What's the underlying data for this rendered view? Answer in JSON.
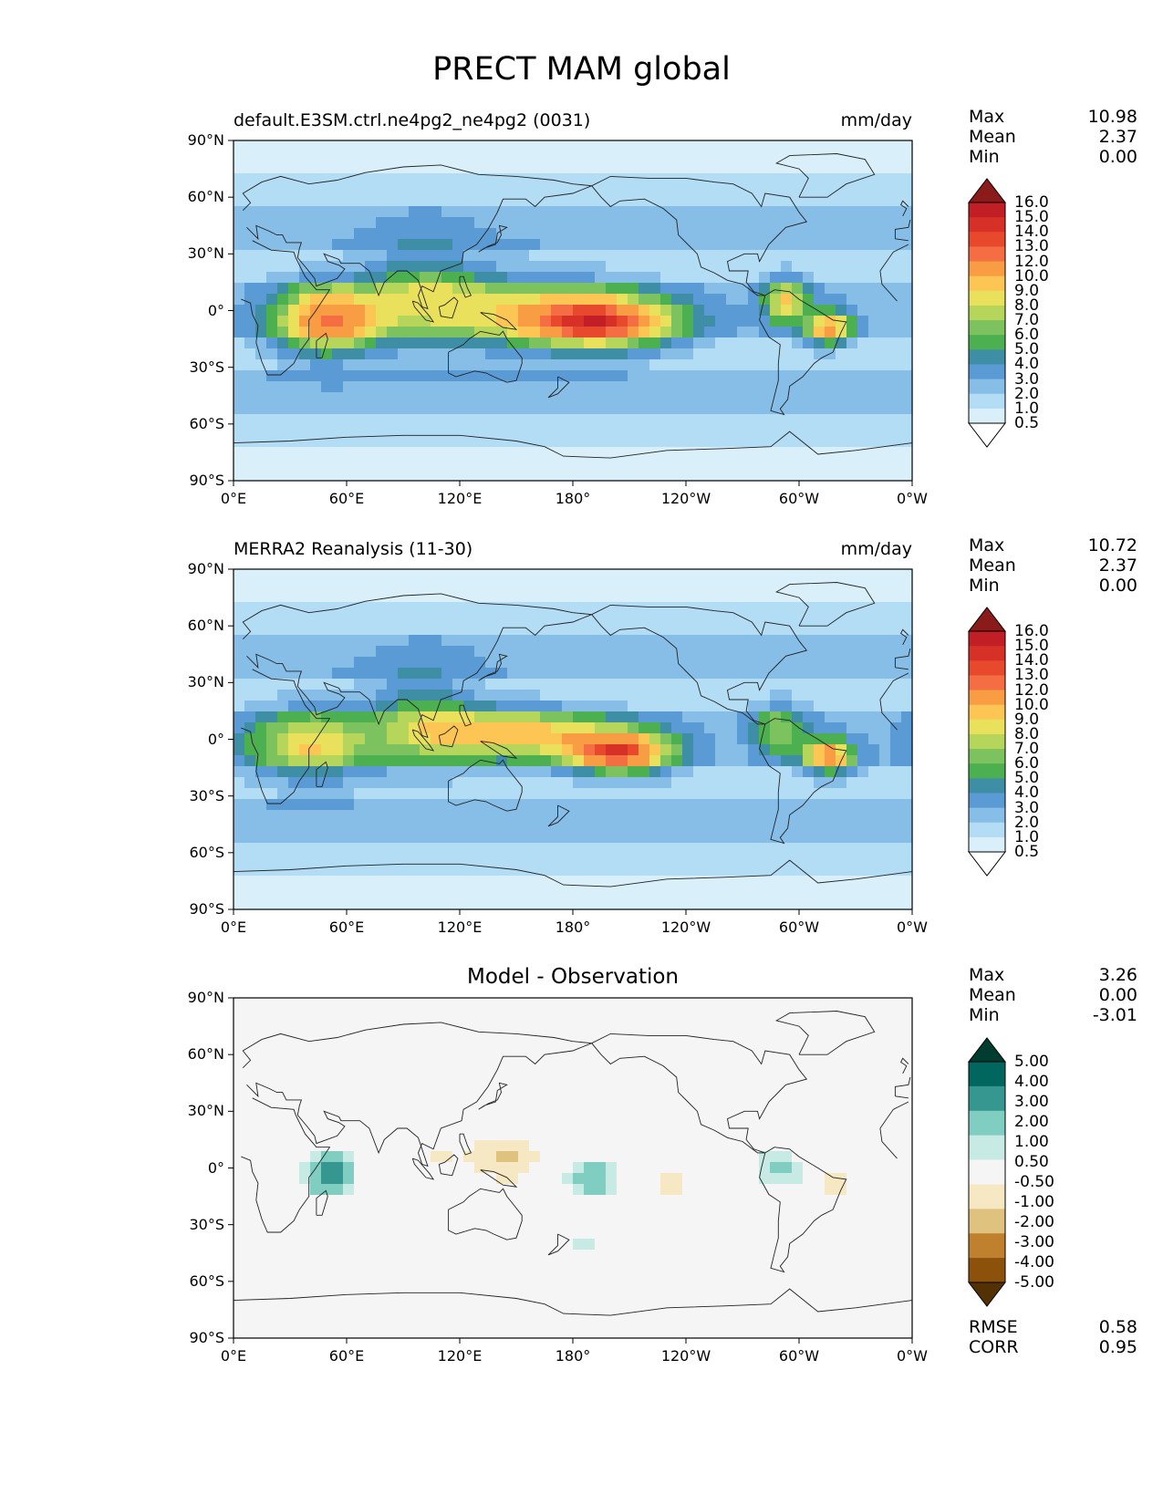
{
  "figure": {
    "title": "PRECT MAM global"
  },
  "panels": [
    {
      "id": "model",
      "title_left": "default.E3SM.ctrl.ne4pg2_ne4pg2 (0031)",
      "title_center": "",
      "units": "mm/day",
      "stats": [
        {
          "label": "Max",
          "value": "10.98"
        },
        {
          "label": "Mean",
          "value": "2.37"
        },
        {
          "label": "Min",
          "value": "0.00"
        }
      ],
      "colorbar_labels": [
        "16.0",
        "15.0",
        "14.0",
        "13.0",
        "12.0",
        "10.0",
        "9.0",
        "8.0",
        "7.0",
        "6.0",
        "5.0",
        "4.0",
        "3.0",
        "2.0",
        "1.0",
        "0.5"
      ],
      "colorbar_colors": [
        "#8b1a1a",
        "#c21e25",
        "#d73027",
        "#e8492d",
        "#f46d43",
        "#f99d45",
        "#fdc553",
        "#e9e05c",
        "#b6d65b",
        "#7cc25f",
        "#4caf50",
        "#3e8fa5",
        "#5b9bd5",
        "#86bee8",
        "#b3dcf5",
        "#d9eff9",
        "#ffffff"
      ],
      "fields": [
        {
          "lon": 50,
          "lat": -5,
          "ax": 28,
          "ay": 18,
          "v": 9.5
        },
        {
          "lon": 195,
          "lat": -6,
          "ax": 40,
          "ay": 14,
          "v": 10.8
        },
        {
          "lon": 143,
          "lat": 0,
          "ax": 55,
          "ay": 20,
          "v": 4.5
        },
        {
          "lon": 293,
          "lat": 5,
          "ax": 12,
          "ay": 12,
          "v": 6.5
        },
        {
          "lon": 316,
          "lat": -9,
          "ax": 12,
          "ay": 9,
          "v": 8.5
        },
        {
          "lon": 100,
          "lat": 10,
          "ax": 30,
          "ay": 25,
          "v": 3.8
        }
      ]
    },
    {
      "id": "obs",
      "title_left": "MERRA2 Reanalysis (11-30)",
      "title_center": "",
      "units": "mm/day",
      "stats": [
        {
          "label": "Max",
          "value": "10.72"
        },
        {
          "label": "Mean",
          "value": "2.37"
        },
        {
          "label": "Min",
          "value": "0.00"
        }
      ],
      "colorbar_labels": [
        "16.0",
        "15.0",
        "14.0",
        "13.0",
        "12.0",
        "10.0",
        "9.0",
        "8.0",
        "7.0",
        "6.0",
        "5.0",
        "4.0",
        "3.0",
        "2.0",
        "1.0",
        "0.5"
      ],
      "colorbar_colors": [
        "#8b1a1a",
        "#c21e25",
        "#d73027",
        "#e8492d",
        "#f46d43",
        "#f99d45",
        "#fdc553",
        "#e9e05c",
        "#b6d65b",
        "#7cc25f",
        "#4caf50",
        "#3e8fa5",
        "#5b9bd5",
        "#86bee8",
        "#b3dcf5",
        "#d9eff9",
        "#ffffff"
      ],
      "fields": [
        {
          "lon": 40,
          "lat": -3,
          "ax": 32,
          "ay": 18,
          "v": 6.5
        },
        {
          "lon": 150,
          "lat": 3,
          "ax": 50,
          "ay": 13,
          "v": 7.2
        },
        {
          "lon": 205,
          "lat": -7,
          "ax": 28,
          "ay": 11,
          "v": 10.5
        },
        {
          "lon": 316,
          "lat": -9,
          "ax": 13,
          "ay": 9,
          "v": 9.0
        },
        {
          "lon": 290,
          "lat": 5,
          "ax": 14,
          "ay": 14,
          "v": 4.5
        },
        {
          "lon": 100,
          "lat": 10,
          "ax": 30,
          "ay": 25,
          "v": 3.8
        }
      ]
    },
    {
      "id": "diff",
      "title_left": "",
      "title_center": "Model - Observation",
      "units": "",
      "stats": [
        {
          "label": "Max",
          "value": "3.26"
        },
        {
          "label": "Mean",
          "value": "0.00"
        },
        {
          "label": "Min",
          "value": "-3.01"
        }
      ],
      "extra_stats": [
        {
          "label": "RMSE",
          "value": "0.58"
        },
        {
          "label": "CORR",
          "value": "0.95"
        }
      ],
      "colorbar_labels": [
        "5.00",
        "4.00",
        "3.00",
        "2.00",
        "1.00",
        "0.50",
        "-0.50",
        "-1.00",
        "-2.00",
        "-3.00",
        "-4.00",
        "-5.00"
      ],
      "colorbar_colors": [
        "#003c30",
        "#01665e",
        "#35978f",
        "#80cdc1",
        "#c7eae5",
        "#f5f5f5",
        "#f6e8c3",
        "#dfc27d",
        "#bf812d",
        "#8c510a",
        "#543005"
      ],
      "fields": [
        {
          "lon": 50,
          "lat": -3,
          "ax": 12,
          "ay": 10,
          "v": 2.8
        },
        {
          "lon": 190,
          "lat": -5,
          "ax": 12,
          "ay": 10,
          "v": 1.8
        },
        {
          "lon": 290,
          "lat": 0,
          "ax": 12,
          "ay": 9,
          "v": 1.5
        },
        {
          "lon": 168,
          "lat": 5,
          "ax": 10,
          "ay": 9,
          "v": 0.8
        },
        {
          "lon": 145,
          "lat": 5,
          "ax": 22,
          "ay": 13,
          "v": -2.2
        },
        {
          "lon": 110,
          "lat": 10,
          "ax": 12,
          "ay": 8,
          "v": -0.8
        },
        {
          "lon": 232,
          "lat": -8,
          "ax": 7,
          "ay": 7,
          "v": -2.2
        },
        {
          "lon": 320,
          "lat": -8,
          "ax": 10,
          "ay": 12,
          "v": -1.3
        },
        {
          "lon": 300,
          "lat": 15,
          "ax": 12,
          "ay": 8,
          "v": -0.8
        },
        {
          "lon": 185,
          "lat": -42,
          "ax": 22,
          "ay": 5,
          "v": 0.6
        },
        {
          "lon": 10,
          "lat": 5,
          "ax": 8,
          "ay": 4,
          "v": -0.6
        },
        {
          "lon": 100,
          "lat": 0,
          "ax": 15,
          "ay": 10,
          "v": -0.55
        }
      ]
    }
  ],
  "lat_ticks": [
    "90°N",
    "60°N",
    "30°N",
    "0°",
    "30°S",
    "60°S",
    "90°S"
  ],
  "lon_ticks": [
    "0°E",
    "60°E",
    "120°E",
    "180°",
    "120°W",
    "60°W",
    "0°W"
  ]
}
